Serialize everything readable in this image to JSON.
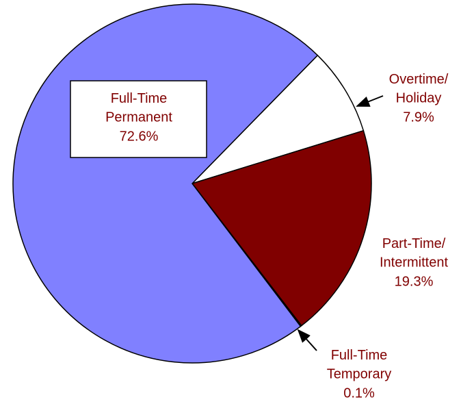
{
  "chart_data": {
    "type": "pie",
    "categories": [
      "Overtime/ Holiday",
      "Part-Time/ Intermittent",
      "Full-Time Temporary",
      "Full-Time Permanent"
    ],
    "values": [
      7.9,
      19.3,
      0.1,
      72.6
    ],
    "value_labels": [
      "7.9%",
      "19.3%",
      "0.1%",
      "72.6%"
    ],
    "colors": [
      "#ffffff",
      "#800000",
      "#ffffff",
      "#8080ff"
    ]
  }
}
